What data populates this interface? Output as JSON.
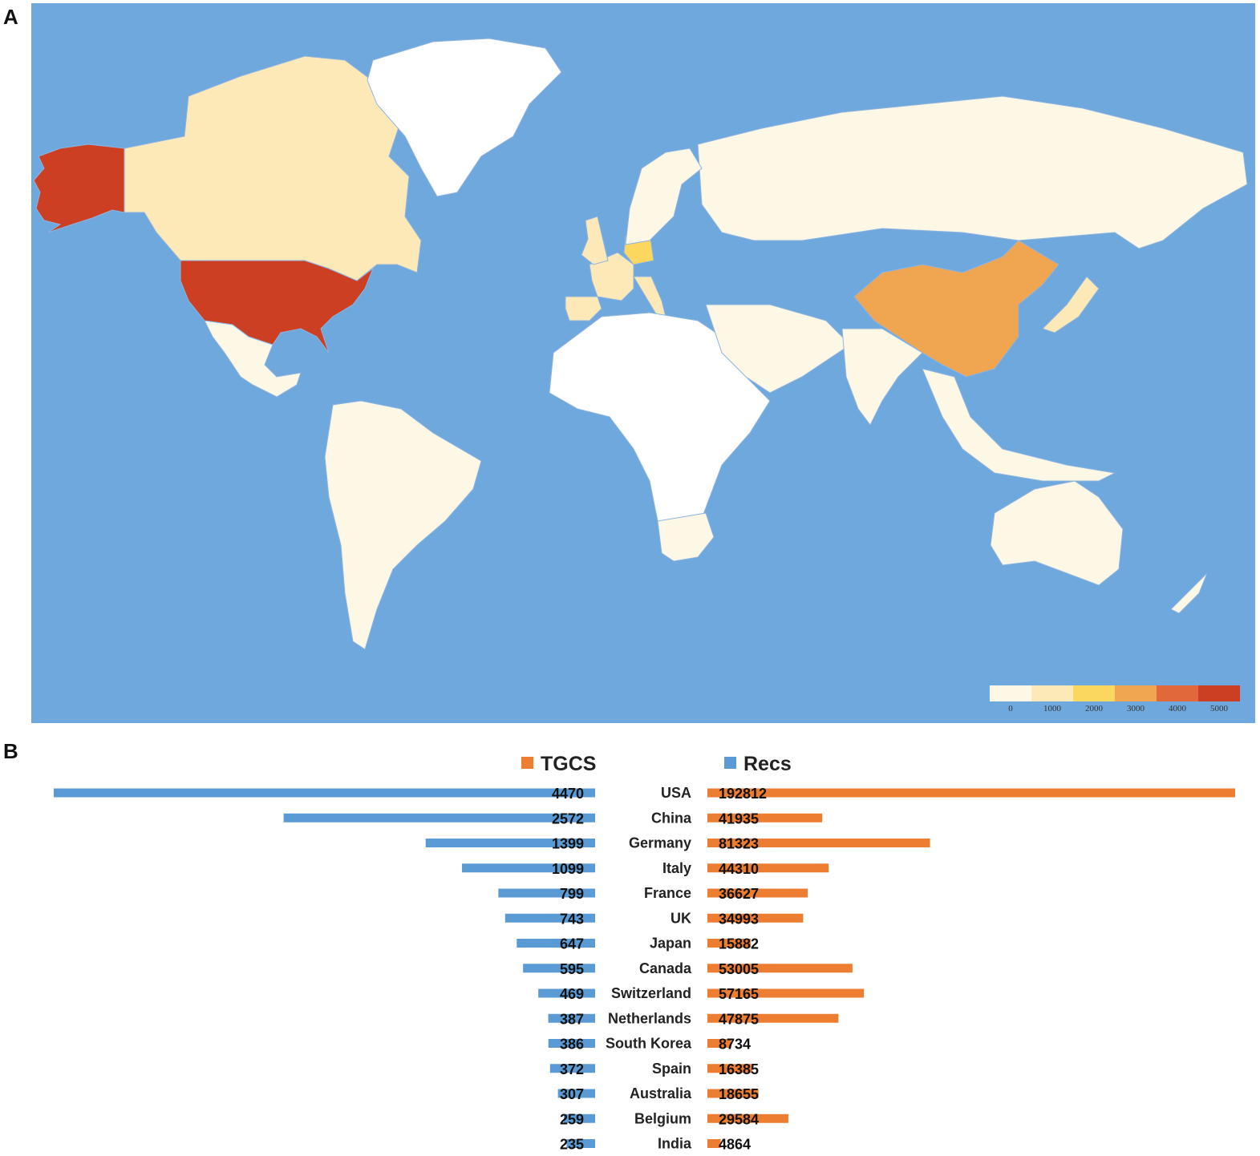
{
  "panels": {
    "a": "A",
    "b": "B"
  },
  "colors": {
    "ocean": "#6fa8dc",
    "tgcs": "#ed7d31",
    "recs": "#5b9bd5",
    "scale": [
      "#fdf7e6",
      "#fde9b8",
      "#fbd760",
      "#f0a550",
      "#e0683a",
      "#cd3f22"
    ],
    "no_data": "#ffffff"
  },
  "map": {
    "legend_ticks": [
      "0",
      "1000",
      "2000",
      "3000",
      "4000",
      "5000"
    ],
    "regions": [
      {
        "name": "USA",
        "bin": 5
      },
      {
        "name": "Alaska",
        "bin": 5
      },
      {
        "name": "Canada",
        "bin": 1
      },
      {
        "name": "Greenland",
        "bin": -1
      },
      {
        "name": "China",
        "bin": 3
      },
      {
        "name": "Russia",
        "bin": 0
      },
      {
        "name": "Germany",
        "bin": 2
      },
      {
        "name": "France",
        "bin": 1
      },
      {
        "name": "UK",
        "bin": 1
      },
      {
        "name": "Italy",
        "bin": 1
      },
      {
        "name": "Spain",
        "bin": 1
      },
      {
        "name": "Scandinavia",
        "bin": 0
      },
      {
        "name": "Mexico",
        "bin": 0
      },
      {
        "name": "South America",
        "bin": 0
      },
      {
        "name": "Africa",
        "bin": -1
      },
      {
        "name": "South Africa",
        "bin": 0
      },
      {
        "name": "Middle East",
        "bin": 0
      },
      {
        "name": "India",
        "bin": 0
      },
      {
        "name": "Japan",
        "bin": 1
      },
      {
        "name": "Southeast Asia",
        "bin": 0
      },
      {
        "name": "Australia",
        "bin": 0
      },
      {
        "name": "New Zealand",
        "bin": 0
      }
    ]
  },
  "chart_data": {
    "type": "bar",
    "legend": [
      "TGCS",
      "Recs"
    ],
    "categories": [
      "USA",
      "China",
      "Germany",
      "Italy",
      "France",
      "UK",
      "Japan",
      "Canada",
      "Switzerland",
      "Netherlands",
      "South Korea",
      "Spain",
      "Australia",
      "Belgium",
      "India"
    ],
    "series": [
      {
        "name": "Recs",
        "values": [
          4470,
          2572,
          1399,
          1099,
          799,
          743,
          647,
          595,
          469,
          387,
          386,
          372,
          307,
          259,
          235
        ]
      },
      {
        "name": "TGCS",
        "values": [
          192812,
          41935,
          81323,
          44310,
          36627,
          34993,
          15882,
          53005,
          57165,
          47875,
          8734,
          16385,
          18655,
          29584,
          4864
        ]
      }
    ]
  }
}
